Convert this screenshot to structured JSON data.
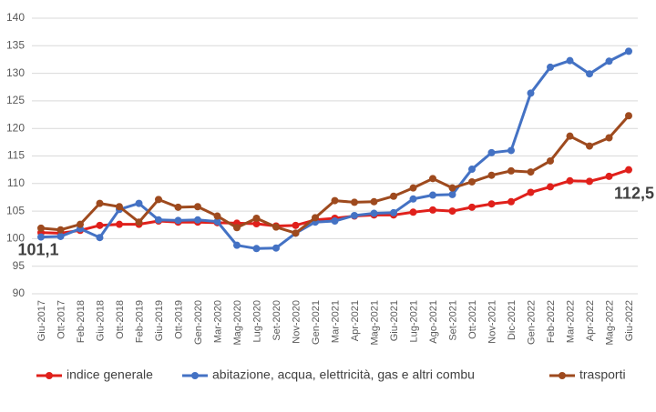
{
  "chart_data": {
    "type": "line",
    "categories": [
      "Giu-2017",
      "Ott-2017",
      "Feb-2018",
      "Giu-2018",
      "Ott-2018",
      "Feb-2019",
      "Giu-2019",
      "Ott-2019",
      "Gen-2020",
      "Mar-2020",
      "Mag-2020",
      "Lug-2020",
      "Set-2020",
      "Nov-2020",
      "Gen-2021",
      "Mar-2021",
      "Apr-2021",
      "Mag-2021",
      "Giu-2021",
      "Lug-2021",
      "Ago-2021",
      "Set-2021",
      "Ott-2021",
      "Nov-2021",
      "Dic-2021",
      "Gen-2022",
      "Feb-2022",
      "Mar-2022",
      "Apr-2022",
      "Mag-2022",
      "Giu-2022"
    ],
    "series": [
      {
        "name": "indice generale",
        "color": "#e0201b",
        "values": [
          101.1,
          101.0,
          101.5,
          102.4,
          102.6,
          102.6,
          103.2,
          103.0,
          103.0,
          102.9,
          102.8,
          102.7,
          102.3,
          102.4,
          103.4,
          103.7,
          104.1,
          104.3,
          104.3,
          104.8,
          105.2,
          105.0,
          105.7,
          106.3,
          106.7,
          108.4,
          109.4,
          110.5,
          110.4,
          111.3,
          112.5
        ],
        "value_labels": [
          "101,1",
          null,
          null,
          null,
          null,
          null,
          null,
          null,
          null,
          null,
          null,
          null,
          null,
          null,
          null,
          null,
          null,
          null,
          null,
          null,
          null,
          null,
          null,
          null,
          null,
          null,
          null,
          null,
          null,
          null,
          "112,5"
        ]
      },
      {
        "name": "abitazione, acqua, elettricità, gas e altri combu",
        "color": "#4472c4",
        "values": [
          100.3,
          100.4,
          101.8,
          100.2,
          105.3,
          106.4,
          103.4,
          103.3,
          103.4,
          103.1,
          98.8,
          98.2,
          98.3,
          101.0,
          103.0,
          103.2,
          104.2,
          104.6,
          104.7,
          107.2,
          107.9,
          108.0,
          112.6,
          115.6,
          116.0,
          126.4,
          131.1,
          132.3,
          129.9,
          132.2,
          134.0
        ]
      },
      {
        "name": "trasporti",
        "color": "#9e4a1e",
        "values": [
          101.9,
          101.6,
          102.6,
          106.4,
          105.8,
          103.0,
          107.1,
          105.7,
          105.8,
          104.1,
          102.0,
          103.7,
          102.1,
          101.0,
          103.8,
          106.9,
          106.6,
          106.7,
          107.7,
          109.2,
          110.9,
          109.2,
          110.3,
          111.5,
          112.3,
          112.1,
          114.1,
          118.6,
          116.8,
          118.3,
          122.3
        ]
      }
    ],
    "ylim": [
      90,
      140
    ],
    "yticks": [
      90,
      95,
      100,
      105,
      110,
      115,
      120,
      125,
      130,
      135,
      140
    ],
    "grid": true
  }
}
